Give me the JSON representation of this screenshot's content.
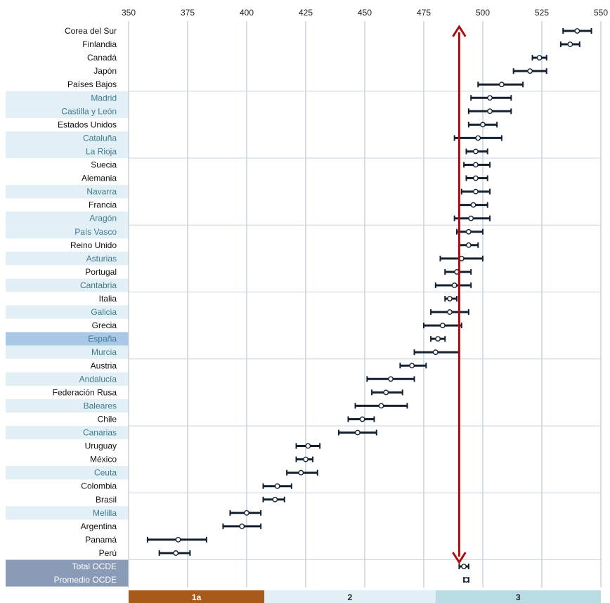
{
  "chart_data": {
    "type": "scatter",
    "title": "",
    "xlabel": "",
    "ylabel": "",
    "xlim": [
      350,
      550
    ],
    "xticks": [
      350,
      375,
      400,
      425,
      450,
      475,
      500,
      525,
      550
    ],
    "grid": true,
    "reference_line": 490,
    "colors": {
      "country": "#111111",
      "region": "#3f7a92",
      "spain": "#3f7a92",
      "region_bg": "#e2eff4",
      "spain_bg": "#a8c8e6",
      "oecd_bg": "#8a9bb8",
      "oecd_text": "#ffffff",
      "marker": "#13202f",
      "reference": "#b00a0a",
      "grid": "#c7d3dc"
    },
    "points": [
      {
        "label": "Corea del Sur",
        "kind": "country",
        "value": 540,
        "low": 534,
        "high": 546
      },
      {
        "label": "Finlandia",
        "kind": "country",
        "value": 537,
        "low": 533,
        "high": 541
      },
      {
        "label": "Canadá",
        "kind": "country",
        "value": 524,
        "low": 521,
        "high": 527
      },
      {
        "label": "Japón",
        "kind": "country",
        "value": 520,
        "low": 513,
        "high": 527
      },
      {
        "label": "Países Bajos",
        "kind": "country",
        "value": 508,
        "low": 498,
        "high": 517
      },
      {
        "label": "Madrid",
        "kind": "region",
        "value": 503,
        "low": 495,
        "high": 512
      },
      {
        "label": "Castilla y León",
        "kind": "region",
        "value": 503,
        "low": 494,
        "high": 512
      },
      {
        "label": "Estados Unidos",
        "kind": "country",
        "value": 500,
        "low": 494,
        "high": 506
      },
      {
        "label": "Cataluña",
        "kind": "region",
        "value": 498,
        "low": 488,
        "high": 508
      },
      {
        "label": "La Rioja",
        "kind": "region",
        "value": 497,
        "low": 493,
        "high": 502
      },
      {
        "label": "Suecia",
        "kind": "country",
        "value": 497,
        "low": 492,
        "high": 503
      },
      {
        "label": "Alemania",
        "kind": "country",
        "value": 497,
        "low": 493,
        "high": 502
      },
      {
        "label": "Navarra",
        "kind": "region",
        "value": 497,
        "low": 491,
        "high": 503
      },
      {
        "label": "Francia",
        "kind": "country",
        "value": 496,
        "low": 490,
        "high": 502
      },
      {
        "label": "Aragón",
        "kind": "region",
        "value": 495,
        "low": 488,
        "high": 503
      },
      {
        "label": "País Vasco",
        "kind": "region",
        "value": 494,
        "low": 489,
        "high": 500
      },
      {
        "label": "Reino Unido",
        "kind": "country",
        "value": 494,
        "low": 490,
        "high": 498
      },
      {
        "label": "Asturias",
        "kind": "region",
        "value": 491,
        "low": 482,
        "high": 500
      },
      {
        "label": "Portugal",
        "kind": "country",
        "value": 489,
        "low": 484,
        "high": 495
      },
      {
        "label": "Cantabria",
        "kind": "region",
        "value": 488,
        "low": 480,
        "high": 495
      },
      {
        "label": "Italia",
        "kind": "country",
        "value": 486,
        "low": 484,
        "high": 489
      },
      {
        "label": "Galicia",
        "kind": "region",
        "value": 486,
        "low": 478,
        "high": 494
      },
      {
        "label": "Grecia",
        "kind": "country",
        "value": 483,
        "low": 475,
        "high": 491
      },
      {
        "label": "España",
        "kind": "spain",
        "value": 481,
        "low": 478,
        "high": 484
      },
      {
        "label": "Murcia",
        "kind": "region",
        "value": 480,
        "low": 471,
        "high": 490
      },
      {
        "label": "Austria",
        "kind": "country",
        "value": 470,
        "low": 465,
        "high": 476
      },
      {
        "label": "Andalucía",
        "kind": "region",
        "value": 461,
        "low": 451,
        "high": 471
      },
      {
        "label": "Federación Rusa",
        "kind": "country",
        "value": 459,
        "low": 453,
        "high": 466
      },
      {
        "label": "Baleares",
        "kind": "region",
        "value": 457,
        "low": 446,
        "high": 468
      },
      {
        "label": "Chile",
        "kind": "country",
        "value": 449,
        "low": 443,
        "high": 454
      },
      {
        "label": "Canarias",
        "kind": "region",
        "value": 447,
        "low": 439,
        "high": 455
      },
      {
        "label": "Uruguay",
        "kind": "country",
        "value": 426,
        "low": 421,
        "high": 431
      },
      {
        "label": "México",
        "kind": "country",
        "value": 425,
        "low": 421,
        "high": 428
      },
      {
        "label": "Ceuta",
        "kind": "region",
        "value": 423,
        "low": 417,
        "high": 430
      },
      {
        "label": "Colombia",
        "kind": "country",
        "value": 413,
        "low": 407,
        "high": 419
      },
      {
        "label": "Brasil",
        "kind": "country",
        "value": 412,
        "low": 407,
        "high": 416
      },
      {
        "label": "Melilla",
        "kind": "region",
        "value": 400,
        "low": 393,
        "high": 406
      },
      {
        "label": "Argentina",
        "kind": "country",
        "value": 398,
        "low": 390,
        "high": 406
      },
      {
        "label": "Panamá",
        "kind": "country",
        "value": 371,
        "low": 358,
        "high": 383
      },
      {
        "label": "Perú",
        "kind": "country",
        "value": 370,
        "low": 363,
        "high": 376
      },
      {
        "label": "Total OCDE",
        "kind": "oecd",
        "value": 492,
        "low": 490,
        "high": 494
      },
      {
        "label": "Promedio OCDE",
        "kind": "oecd",
        "value": 493,
        "low": 492,
        "high": 494
      }
    ],
    "bands": [
      {
        "label": "1a",
        "from": 350,
        "to": 407.5,
        "color": "#a85a1a",
        "text_color": "#ffffff"
      },
      {
        "label": "2",
        "from": 407.5,
        "to": 480,
        "color": "#e2eff4",
        "text_color": "#222222"
      },
      {
        "label": "3",
        "from": 480,
        "to": 550,
        "color": "#b9dbe4",
        "text_color": "#222222"
      }
    ]
  }
}
